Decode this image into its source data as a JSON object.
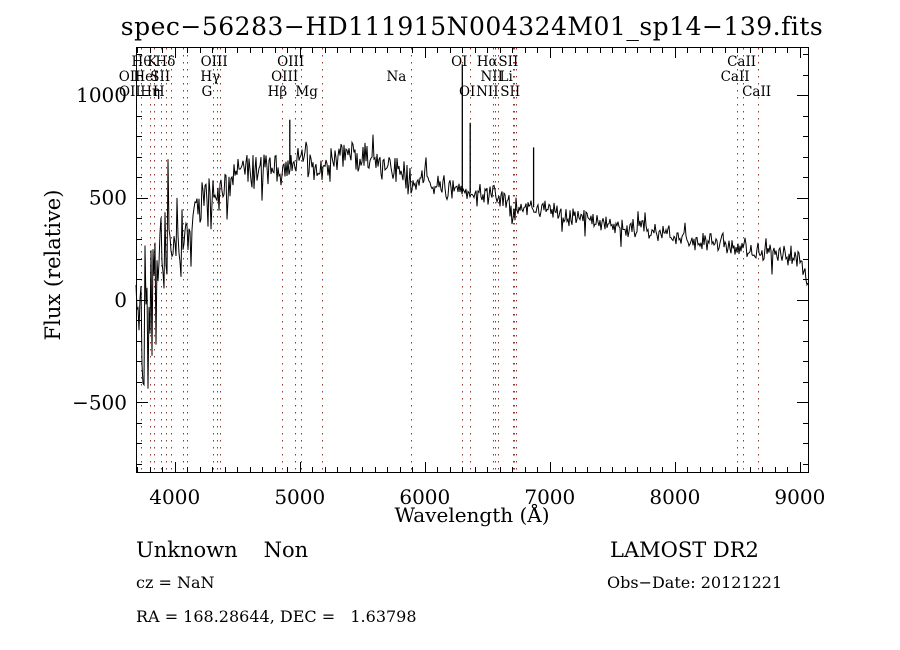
{
  "title": "spec−56283−HD111915N004324M01_sp14−139.fits",
  "colors": {
    "background": "#ffffff",
    "trace": "#000000",
    "frame": "#000000",
    "spectral_marker": "#95382f"
  },
  "axis_tick_labels": {
    "x": [
      "4000",
      "5000",
      "6000",
      "7000",
      "8000",
      "9000"
    ],
    "y": [
      "−500",
      "0",
      "500",
      "1000"
    ]
  },
  "footer": {
    "class_label": "Unknown",
    "subclass_label": "Non",
    "survey": "LAMOST DR2",
    "cz": "cz = NaN",
    "obs_date": "Obs−Date: 20121221",
    "ra_dec": "RA = 168.28644, DEC =   1.63798"
  },
  "chart_data": {
    "type": "line",
    "title": "spec−56283−HD111915N004324M01_sp14−139.fits",
    "xlabel": "Wavelength (Å)",
    "ylabel": "Flux (relative)",
    "x_unit": "Å",
    "xlim": [
      3690,
      9065
    ],
    "ylim": [
      -840,
      1235
    ],
    "x_ticks": [
      4000,
      5000,
      6000,
      7000,
      8000,
      9000
    ],
    "y_ticks": [
      -500,
      0,
      500,
      1000
    ],
    "x_minor_step": 100,
    "y_minor_step": 100,
    "grid": false,
    "legend": "none",
    "noise_seed": 42,
    "envelope": [
      [
        3690,
        50,
        470
      ],
      [
        3720,
        -20,
        520
      ],
      [
        3760,
        -60,
        540
      ],
      [
        3800,
        60,
        470
      ],
      [
        3840,
        120,
        420
      ],
      [
        3880,
        200,
        380
      ],
      [
        3920,
        150,
        400
      ],
      [
        3960,
        260,
        330
      ],
      [
        4000,
        280,
        280
      ],
      [
        4050,
        300,
        250
      ],
      [
        4100,
        330,
        220
      ],
      [
        4150,
        400,
        180
      ],
      [
        4250,
        480,
        150
      ],
      [
        4350,
        540,
        130
      ],
      [
        4450,
        580,
        120
      ],
      [
        4550,
        620,
        110
      ],
      [
        4700,
        650,
        105
      ],
      [
        4861,
        645,
        110
      ],
      [
        4950,
        670,
        100
      ],
      [
        5050,
        680,
        95
      ],
      [
        5175,
        620,
        110
      ],
      [
        5300,
        700,
        95
      ],
      [
        5400,
        720,
        95
      ],
      [
        5500,
        700,
        90
      ],
      [
        5650,
        660,
        85
      ],
      [
        5800,
        625,
        80
      ],
      [
        5893,
        560,
        85
      ],
      [
        6000,
        580,
        75
      ],
      [
        6150,
        555,
        70
      ],
      [
        6280,
        530,
        65
      ],
      [
        6400,
        515,
        65
      ],
      [
        6563,
        510,
        60
      ],
      [
        6650,
        480,
        60
      ],
      [
        6700,
        430,
        70
      ],
      [
        6760,
        460,
        60
      ],
      [
        6900,
        450,
        60
      ],
      [
        7050,
        430,
        60
      ],
      [
        7200,
        405,
        58
      ],
      [
        7350,
        390,
        55
      ],
      [
        7500,
        370,
        55
      ],
      [
        7600,
        345,
        60
      ],
      [
        7750,
        350,
        52
      ],
      [
        7900,
        325,
        55
      ],
      [
        8050,
        300,
        55
      ],
      [
        8200,
        275,
        55
      ],
      [
        8350,
        280,
        55
      ],
      [
        8500,
        265,
        60
      ],
      [
        8620,
        245,
        60
      ],
      [
        8750,
        240,
        65
      ],
      [
        8900,
        225,
        70
      ],
      [
        9000,
        190,
        80
      ],
      [
        9065,
        90,
        70
      ]
    ],
    "spikes": [
      [
        4920,
        880
      ],
      [
        6300,
        1150
      ],
      [
        6363,
        865
      ],
      [
        6870,
        745
      ]
    ],
    "spectral_lines": [
      {
        "name": "Hθ",
        "wavelength": 3798,
        "row": 1,
        "dx": -8
      },
      {
        "name": "K",
        "wavelength": 3933,
        "row": 1,
        "dx": -14
      },
      {
        "name": "Hδ",
        "wavelength": 4101,
        "row": 1,
        "dx": -22
      },
      {
        "name": "OIII",
        "wavelength": 4363,
        "row": 1,
        "dx": -6
      },
      {
        "name": "OIII",
        "wavelength": 5007,
        "row": 1,
        "dx": -10
      },
      {
        "name": "OI",
        "wavelength": 6300,
        "row": 1,
        "dx": -3
      },
      {
        "name": "Hα",
        "wavelength": 6563,
        "row": 1,
        "dx": -8
      },
      {
        "name": "SII",
        "wavelength": 6716,
        "row": 1,
        "dx": -6
      },
      {
        "name": "CaII",
        "wavelength": 8542,
        "row": 1,
        "dx": -1
      },
      {
        "name": "OII",
        "wavelength": 3727,
        "row": 2,
        "dx": -11
      },
      {
        "name": "HeI",
        "wavelength": 3889,
        "row": 2,
        "dx": -15
      },
      {
        "name": "SII",
        "wavelength": 4068,
        "row": 2,
        "dx": -23
      },
      {
        "name": "Hγ",
        "wavelength": 4340,
        "row": 2,
        "dx": -7
      },
      {
        "name": "OIII",
        "wavelength": 4959,
        "row": 2,
        "dx": -10
      },
      {
        "name": "Na",
        "wavelength": 5893,
        "row": 2,
        "dx": -15
      },
      {
        "name": "NII",
        "wavelength": 6583,
        "row": 2,
        "dx": -6
      },
      {
        "name": "Li",
        "wavelength": 6707,
        "row": 2,
        "dx": -7
      },
      {
        "name": "CaII",
        "wavelength": 8498,
        "row": 2,
        "dx": -2
      },
      {
        "name": "OII",
        "wavelength": 3729,
        "row": 3,
        "dx": -11
      },
      {
        "name": "Hη",
        "wavelength": 3835,
        "row": 3,
        "dx": -4
      },
      {
        "name": "H",
        "wavelength": 3968,
        "row": 3,
        "dx": -12
      },
      {
        "name": "G",
        "wavelength": 4305,
        "row": 3,
        "dx": -6
      },
      {
        "name": "Hβ",
        "wavelength": 4861,
        "row": 3,
        "dx": -5
      },
      {
        "name": "Mg",
        "wavelength": 5175,
        "row": 3,
        "dx": -15
      },
      {
        "name": "OI",
        "wavelength": 6363,
        "row": 3,
        "dx": -3
      },
      {
        "name": "NII",
        "wavelength": 6548,
        "row": 3,
        "dx": -6
      },
      {
        "name": "SII",
        "wavelength": 6731,
        "row": 3,
        "dx": -6
      },
      {
        "name": "CaII",
        "wavelength": 8662,
        "row": 3,
        "dx": -1
      }
    ]
  }
}
